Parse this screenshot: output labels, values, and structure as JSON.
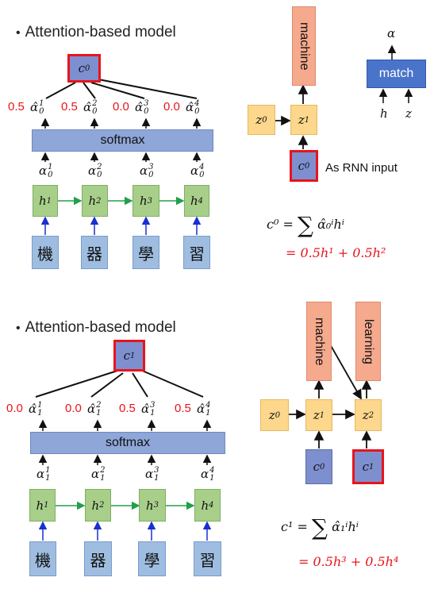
{
  "top": {
    "title": "Attention-based model",
    "context_symbol": "c",
    "context_index": "0",
    "weights": [
      "0.5",
      "0.5",
      "0.0",
      "0.0"
    ],
    "alpha_hat_sub": "0",
    "softmax_label": "softmax",
    "alpha_sub": "0",
    "hidden_symbol": "h",
    "hidden_sups": [
      "1",
      "2",
      "3",
      "4"
    ],
    "inputs": [
      "機",
      "器",
      "學",
      "習"
    ],
    "decoder": {
      "z0": "0",
      "z1": "1",
      "output_word": "machine",
      "c_index": "0",
      "rnn_note": "As RNN input"
    },
    "match": {
      "label": "match",
      "out": "α",
      "in1": "h",
      "in2": "z"
    },
    "formula1_lhs": "c⁰ =",
    "formula1_sum_term": "α̂₀ⁱhⁱ",
    "formula2": "= 0.5h¹ + 0.5h²"
  },
  "bottom": {
    "title": "Attention-based model",
    "context_symbol": "c",
    "context_index": "1",
    "weights": [
      "0.0",
      "0.0",
      "0.5",
      "0.5"
    ],
    "alpha_hat_sub": "1",
    "softmax_label": "softmax",
    "alpha_sub": "1",
    "hidden_symbol": "h",
    "hidden_sups": [
      "1",
      "2",
      "3",
      "4"
    ],
    "inputs": [
      "機",
      "器",
      "學",
      "習"
    ],
    "decoder": {
      "z0": "0",
      "z1": "1",
      "z2": "2",
      "output_word1": "machine",
      "output_word2": "learning",
      "c0_index": "0",
      "c1_index": "1"
    },
    "formula1_lhs": "c¹ =",
    "formula1_sum_term": "α̂₁ⁱhⁱ",
    "formula2": "= 0.5h³ + 0.5h⁴"
  }
}
